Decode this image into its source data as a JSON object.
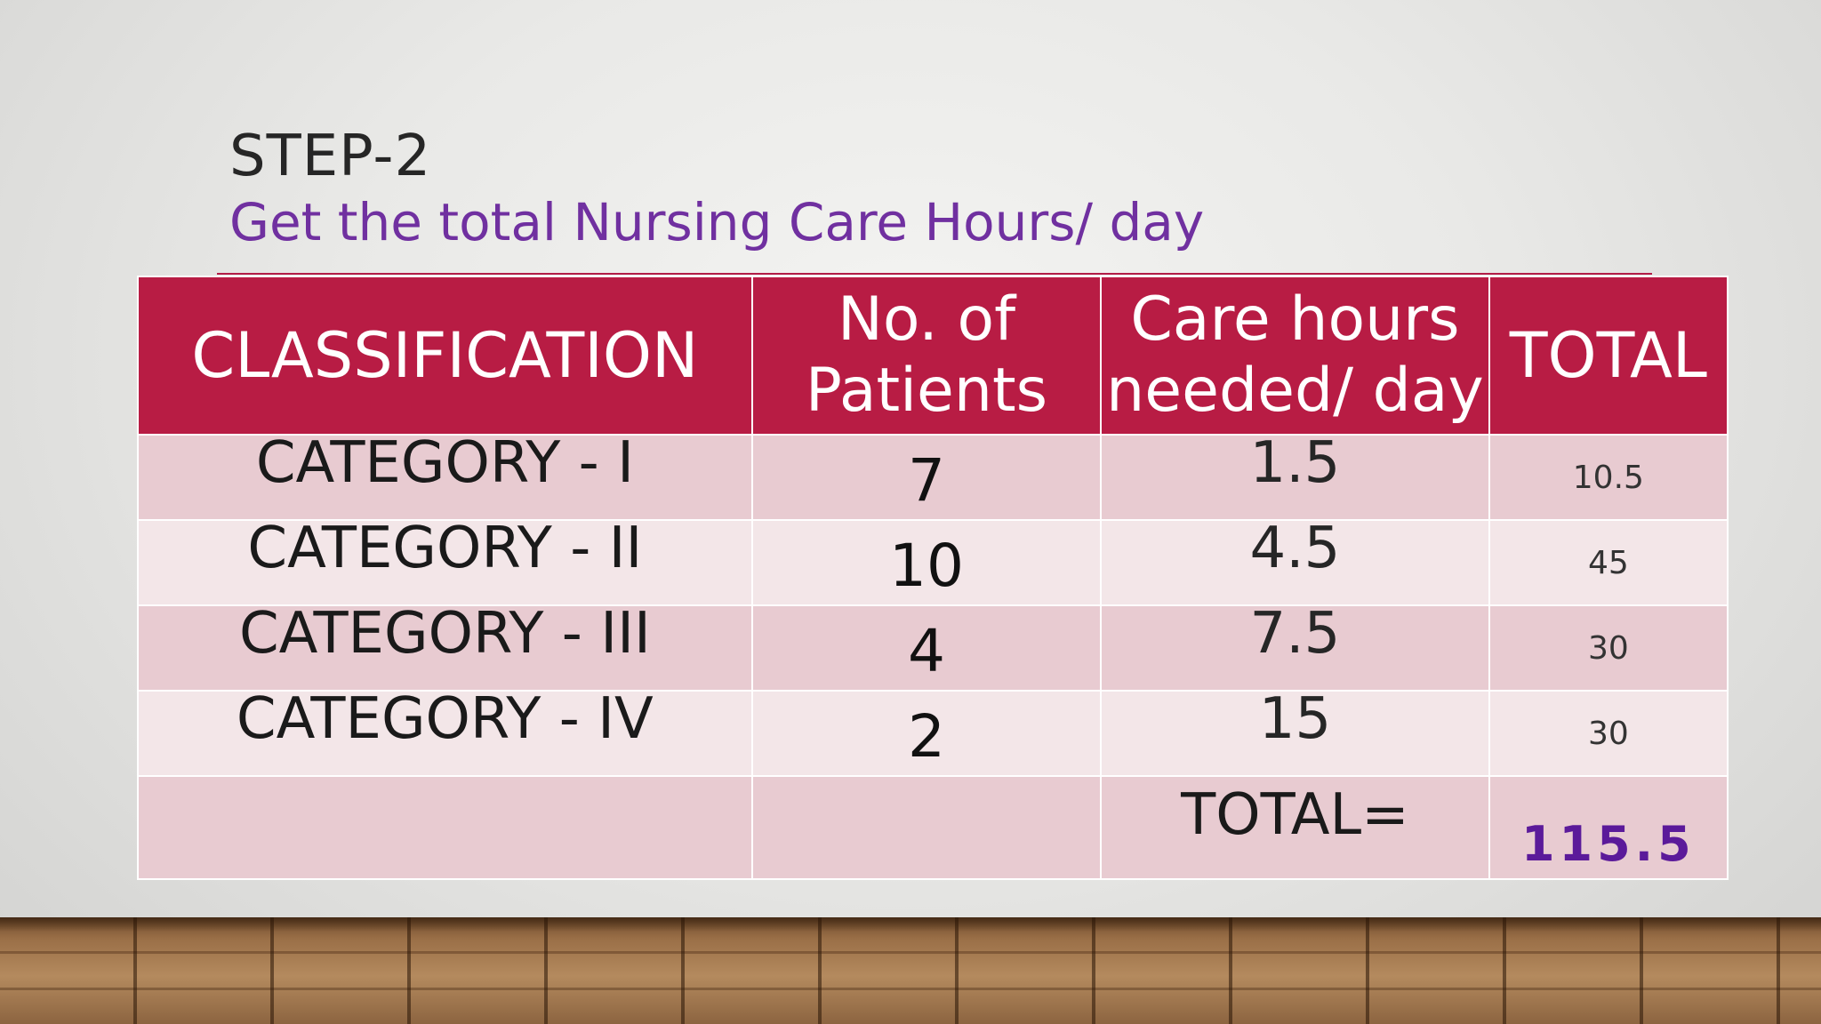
{
  "slide": {
    "step_title": "STEP-2",
    "subtitle": "Get the total Nursing Care Hours/ day",
    "colors": {
      "subtitle": "#7030a0",
      "header_bg": "#b81c44",
      "row_odd": "#e8cbd1",
      "row_even": "#f3e6e8",
      "grand_total": "#5b1a9a"
    }
  },
  "table": {
    "headers": {
      "classification": "CLASSIFICATION",
      "patients_line1": "No. of",
      "patients_line2": "Patients",
      "hours_line1": "Care hours",
      "hours_line2": "needed/ day",
      "total": "TOTAL"
    },
    "rows": [
      {
        "category": "CATEGORY - I",
        "patients": "7",
        "hours": "1.5",
        "total": "10.5"
      },
      {
        "category": "CATEGORY - II",
        "patients": "10",
        "hours": "4.5",
        "total": "45"
      },
      {
        "category": "CATEGORY - III",
        "patients": "4",
        "hours": "7.5",
        "total": "30"
      },
      {
        "category": "CATEGORY - IV",
        "patients": "2",
        "hours": "15",
        "total": "30"
      }
    ],
    "total_label": "TOTAL=",
    "grand_total": "115.5"
  }
}
